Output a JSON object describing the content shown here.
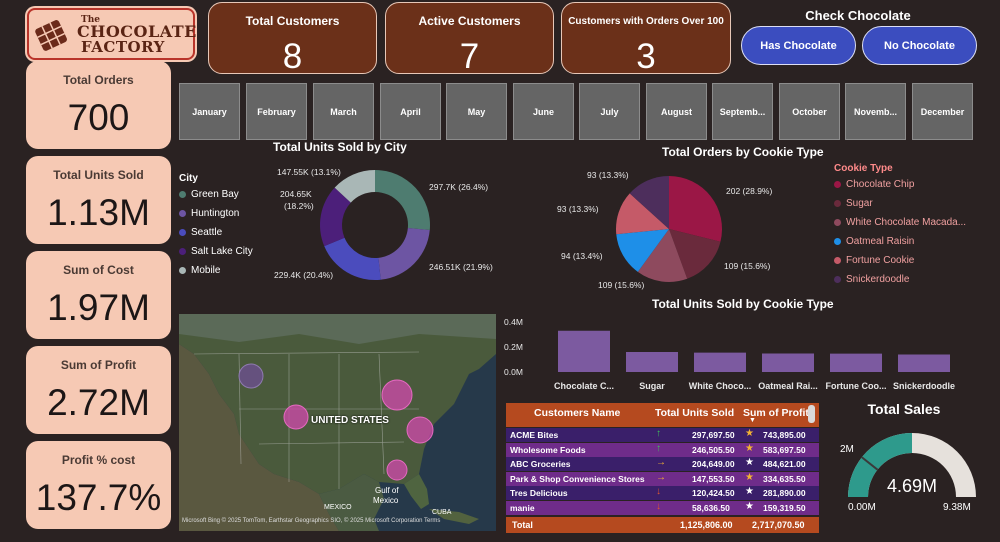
{
  "logo": {
    "the": "The",
    "line1": "CHOCOLATE",
    "line2": "FACTORY"
  },
  "kpis_left": [
    {
      "label": "Total Orders",
      "value": "700"
    },
    {
      "label": "Total Units Sold",
      "value": "1.13M"
    },
    {
      "label": "Sum of Cost",
      "value": "1.97M"
    },
    {
      "label": "Sum of Profit",
      "value": "2.72M"
    },
    {
      "label": "Profit % cost",
      "value": "137.7%"
    }
  ],
  "kpis_top": [
    {
      "label": "Total Customers",
      "value": "8"
    },
    {
      "label": "Active Customers",
      "value": "7"
    },
    {
      "label": "Customers with Orders Over 100",
      "value": "3"
    }
  ],
  "check_chocolate": {
    "title": "Check Chocolate",
    "has": "Has Chocolate",
    "none": "No Chocolate"
  },
  "months": [
    "January",
    "February",
    "March",
    "April",
    "May",
    "June",
    "July",
    "August",
    "Septemb...",
    "October",
    "Novemb...",
    "December"
  ],
  "colors": {
    "kpi_light": "#f6c9b4",
    "kpi_dark": "#6b3019",
    "accent_blue": "#3b4dbf",
    "table_head": "#b54a1f"
  },
  "city_chart": {
    "title": "Total Units Sold by City",
    "legend_title": "City",
    "legend": [
      {
        "name": "Green Bay",
        "color": "#4e7c70"
      },
      {
        "name": "Huntington",
        "color": "#6d55a3"
      },
      {
        "name": "Seattle",
        "color": "#4b4cbd"
      },
      {
        "name": "Salt Lake City",
        "color": "#4c1f7a"
      },
      {
        "name": "Mobile",
        "color": "#a9b7b6"
      }
    ],
    "labels": {
      "green_bay": "297.7K (26.4%)",
      "huntington": "246.51K (21.9%)",
      "seattle": "229.4K (20.4%)",
      "salt_lake_a": "204.65K",
      "salt_lake_b": "(18.2%)",
      "mobile": "147.55K (13.1%)"
    }
  },
  "chart_data": [
    {
      "type": "pie",
      "title": "Total Units Sold by City",
      "categories": [
        "Green Bay",
        "Huntington",
        "Seattle",
        "Salt Lake City",
        "Mobile"
      ],
      "values": [
        297697.5,
        246505.5,
        229400,
        204650,
        147553.5
      ],
      "percent": [
        26.4,
        21.9,
        20.4,
        18.2,
        13.1
      ],
      "colors": [
        "#4e7c70",
        "#6d55a3",
        "#4b4cbd",
        "#4c1f7a",
        "#a9b7b6"
      ]
    },
    {
      "type": "pie",
      "title": "Total Orders by Cookie Type",
      "categories": [
        "Chocolate Chip",
        "Sugar",
        "White Chocolate Macadamia",
        "Oatmeal Raisin",
        "Fortune Cookie",
        "Snickerdoodle"
      ],
      "values": [
        202,
        109,
        109,
        94,
        93,
        93
      ],
      "percent": [
        28.9,
        15.6,
        15.6,
        13.4,
        13.3,
        13.3
      ],
      "colors": [
        "#9b1746",
        "#6a2a3c",
        "#8e4a5e",
        "#1e8fe8",
        "#c55a68",
        "#4d2e5c"
      ]
    },
    {
      "type": "bar",
      "title": "Total Units Sold by Cookie Type",
      "categories": [
        "Chocolate C...",
        "Sugar",
        "White Choco...",
        "Oatmeal Rai...",
        "Fortune Coo...",
        "Snickerdoodle"
      ],
      "values": [
        330000,
        160000,
        155000,
        148000,
        147000,
        140000
      ],
      "yticks": [
        "0.4M",
        "0.2M",
        "0.0M"
      ],
      "ylim": [
        0,
        400000
      ]
    },
    {
      "type": "gauge",
      "title": "Total Sales",
      "value": 4690000,
      "min": 0,
      "max": 9380000,
      "target": 2000000
    }
  ],
  "cookie_chart": {
    "title": "Total Orders by Cookie Type",
    "legend_title": "Cookie Type",
    "legend": [
      {
        "name": "Chocolate Chip",
        "color": "#9b1746"
      },
      {
        "name": "Sugar",
        "color": "#6a2a3c"
      },
      {
        "name": "White Chocolate Macada...",
        "color": "#8e4a5e"
      },
      {
        "name": "Oatmeal Raisin",
        "color": "#1e8fe8"
      },
      {
        "name": "Fortune Cookie",
        "color": "#c55a68"
      },
      {
        "name": "Snickerdoodle",
        "color": "#4d2e5c"
      }
    ],
    "labels": {
      "choc": "202 (28.9%)",
      "sugar": "109 (15.6%)",
      "white": "109 (15.6%)",
      "oatmeal": "94 (13.4%)",
      "fortune": "93 (13.3%)",
      "snicker": "93 (13.3%)"
    }
  },
  "bar_chart": {
    "title": "Total Units Sold by Cookie Type"
  },
  "map": {
    "country_label": "UNITED STATES",
    "mexico_label": "MEXICO",
    "gulf_label_1": "Gulf of",
    "gulf_label_2": "Mexico",
    "cuba_label": "CUBA",
    "attribution": "Microsoft Bing   © 2025 TomTom, Earthstar Geographics SIO, © 2025 Microsoft Corporation  Terms"
  },
  "table": {
    "headers": [
      "Customers Name",
      "Total Units Sold",
      "Sum of Profit"
    ],
    "rows": [
      {
        "name": "ACME Bites",
        "arrow": "↑",
        "arrow_color": "#3fbf5a",
        "units": "297,697.50",
        "star": "★",
        "star_color": "#f2b233",
        "profit": "743,895.00",
        "bg": "#3a1f6a"
      },
      {
        "name": "Wholesome Foods",
        "arrow": "↑",
        "arrow_color": "#3fbf5a",
        "units": "246,505.50",
        "star": "★",
        "star_color": "#f2b233",
        "profit": "583,697.50",
        "bg": "#6f2c8a"
      },
      {
        "name": "ABC Groceries",
        "arrow": "→",
        "arrow_color": "#f2b233",
        "units": "204,649.00",
        "star": "★",
        "star_color": "#ffffff",
        "profit": "484,621.00",
        "bg": "#3a1f6a"
      },
      {
        "name": "Park & Shop Convenience Stores",
        "arrow": "→",
        "arrow_color": "#f2b233",
        "units": "147,553.50",
        "star": "★",
        "star_color": "#f2b233",
        "profit": "334,635.50",
        "bg": "#6f2c8a"
      },
      {
        "name": "Tres Delicious",
        "arrow": "↓",
        "arrow_color": "#e0562f",
        "units": "120,424.50",
        "star": "★",
        "star_color": "#ffffff",
        "profit": "281,890.00",
        "bg": "#3a1f6a"
      },
      {
        "name": "manie",
        "arrow": "↓",
        "arrow_color": "#e0562f",
        "units": "58,636.50",
        "star": "★",
        "star_color": "#ffffff",
        "profit": "159,319.50",
        "bg": "#6f2c8a"
      }
    ],
    "total_label": "Total",
    "total_units": "1,125,806.00",
    "total_profit": "2,717,070.50"
  },
  "gauge": {
    "title": "Total Sales",
    "value": "4.69M",
    "min": "0.00M",
    "max": "9.38M",
    "target": "2M"
  }
}
